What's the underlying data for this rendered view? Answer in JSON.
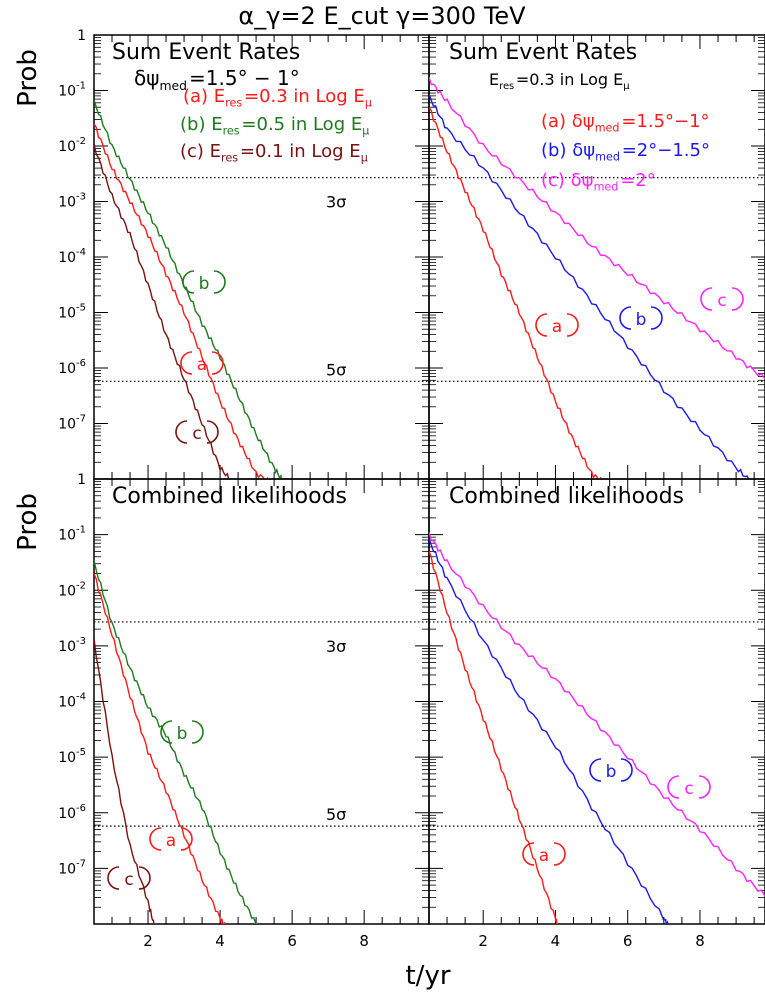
{
  "figure": {
    "title": "α_γ=2 E_cut γ=300 TeV",
    "ylabel": "Prob",
    "xlabel": "t/yr",
    "x_ticks": [
      "2",
      "4",
      "6",
      "8"
    ],
    "y_ticks": [
      "1",
      "10^-1",
      "10^-2",
      "10^-3",
      "10^-4",
      "10^-5",
      "10^-6",
      "10^-7",
      "1"
    ],
    "sigma_labels": [
      "3σ",
      "5σ"
    ]
  },
  "colors": {
    "red": "#ff1a1a",
    "green": "#1e7a1e",
    "darkred": "#7a1010",
    "blue": "#1a1aee",
    "magenta": "#ff22ff"
  },
  "panels": [
    {
      "title": "Sum Event Rates",
      "subtitle": "δψ_med=1.5° − 1°",
      "legend": [
        {
          "text": "(a) E_res=0.3 in Log E_μ",
          "color": "red"
        },
        {
          "text": "(b) E_res=0.5 in Log E_μ",
          "color": "green"
        },
        {
          "text": "(c) E_res=0.1 in Log E_μ",
          "color": "darkred"
        }
      ],
      "curve_labels": [
        {
          "label": "b",
          "color": "green"
        },
        {
          "label": "a",
          "color": "red"
        },
        {
          "label": "c",
          "color": "darkred"
        }
      ]
    },
    {
      "title": "Sum Event Rates",
      "subtitle": "E_res=0.3 in Log E_μ",
      "legend": [
        {
          "text": "(a) δψ_med=1.5°−1°",
          "color": "red"
        },
        {
          "text": "(b) δψ_med=2°−1.5°",
          "color": "blue"
        },
        {
          "text": "(c) δψ_med=2°",
          "color": "magenta"
        }
      ],
      "curve_labels": [
        {
          "label": "a",
          "color": "red"
        },
        {
          "label": "b",
          "color": "blue"
        },
        {
          "label": "c",
          "color": "magenta"
        }
      ]
    },
    {
      "title": "Combined likelihoods",
      "subtitle": "",
      "legend": [],
      "curve_labels": [
        {
          "label": "b",
          "color": "green"
        },
        {
          "label": "a",
          "color": "red"
        },
        {
          "label": "c",
          "color": "darkred"
        }
      ]
    },
    {
      "title": "Combined likelihoods",
      "subtitle": "",
      "legend": [],
      "curve_labels": [
        {
          "label": "a",
          "color": "red"
        },
        {
          "label": "b",
          "color": "blue"
        },
        {
          "label": "c",
          "color": "magenta"
        }
      ]
    }
  ],
  "chart_data": [
    {
      "type": "line",
      "title": "Sum Event Rates",
      "xlabel": "t/yr",
      "ylabel": "Prob",
      "xlim": [
        0.5,
        9.8
      ],
      "ylim_log10": [
        -8,
        0
      ],
      "hlines_log10": [
        {
          "y": -2.57,
          "label": "3σ"
        },
        {
          "y": -6.24,
          "label": "5σ"
        }
      ],
      "series": [
        {
          "name": "(a) E_res=0.3 in Log E_μ",
          "color": "red",
          "x": [
            0.5,
            1,
            1.5,
            2,
            2.5,
            3,
            3.5,
            4,
            4.5,
            5.0,
            5.5
          ],
          "y_log10": [
            -1.6,
            -2.4,
            -3.0,
            -3.6,
            -4.3,
            -5.0,
            -5.8,
            -6.6,
            -7.3,
            -7.9,
            -8.1
          ]
        },
        {
          "name": "(b) E_res=0.5 in Log E_μ",
          "color": "green",
          "x": [
            0.5,
            1,
            1.5,
            2,
            2.5,
            3,
            3.5,
            4,
            4.5,
            5,
            5.5,
            5.8
          ],
          "y_log10": [
            -1.2,
            -2.0,
            -2.6,
            -3.2,
            -3.8,
            -4.5,
            -5.2,
            -5.8,
            -6.5,
            -7.2,
            -7.8,
            -8.1
          ]
        },
        {
          "name": "(c) E_res=0.1 in Log E_μ",
          "color": "darkred",
          "x": [
            0.5,
            1,
            1.5,
            2,
            2.5,
            3,
            3.5,
            4,
            4.4
          ],
          "y_log10": [
            -2.0,
            -2.9,
            -3.6,
            -4.5,
            -5.4,
            -6.2,
            -7.0,
            -7.8,
            -8.1
          ]
        }
      ]
    },
    {
      "type": "line",
      "title": "Sum Event Rates",
      "xlabel": "t/yr",
      "ylabel": "Prob",
      "xlim": [
        0.5,
        9.8
      ],
      "ylim_log10": [
        -8,
        0
      ],
      "hlines_log10": [
        {
          "y": -2.57,
          "label": ""
        },
        {
          "y": -6.24,
          "label": ""
        }
      ],
      "series": [
        {
          "name": "(a) δψ_med=1.5°−1°",
          "color": "red",
          "x": [
            0.5,
            1,
            1.5,
            2,
            2.5,
            3,
            3.5,
            4,
            4.5,
            5.0,
            5.4
          ],
          "y_log10": [
            -1.3,
            -2.1,
            -2.8,
            -3.5,
            -4.3,
            -5.0,
            -5.8,
            -6.6,
            -7.3,
            -7.9,
            -8.1
          ]
        },
        {
          "name": "(b) δψ_med=2°−1.5°",
          "color": "blue",
          "x": [
            0.5,
            1,
            2,
            3,
            4,
            5,
            6,
            7,
            8,
            9,
            9.5
          ],
          "y_log10": [
            -1.1,
            -1.7,
            -2.4,
            -3.2,
            -4.0,
            -4.8,
            -5.6,
            -6.4,
            -7.1,
            -7.8,
            -8.1
          ]
        },
        {
          "name": "(c) δψ_med=2°",
          "color": "magenta",
          "x": [
            0.5,
            1,
            2,
            3,
            4,
            5,
            6,
            7,
            8,
            9,
            9.8
          ],
          "y_log10": [
            -0.8,
            -1.2,
            -2.0,
            -2.6,
            -3.2,
            -3.8,
            -4.3,
            -4.8,
            -5.3,
            -5.8,
            -6.2
          ]
        }
      ]
    },
    {
      "type": "line",
      "title": "Combined likelihoods",
      "xlabel": "t/yr",
      "ylabel": "Prob",
      "xlim": [
        0.5,
        9.8
      ],
      "ylim_log10": [
        -8,
        0
      ],
      "hlines_log10": [
        {
          "y": -2.57,
          "label": "3σ"
        },
        {
          "y": -6.24,
          "label": "5σ"
        }
      ],
      "series": [
        {
          "name": "(a)",
          "color": "red",
          "x": [
            0.5,
            1,
            1.5,
            2,
            2.5,
            3,
            3.5,
            4,
            4.2
          ],
          "y_log10": [
            -1.7,
            -2.8,
            -3.9,
            -4.9,
            -5.6,
            -6.4,
            -7.2,
            -7.9,
            -8.1
          ]
        },
        {
          "name": "(b)",
          "color": "green",
          "x": [
            0.5,
            1,
            1.5,
            2,
            2.5,
            3,
            3.5,
            4,
            4.5,
            5,
            5.1
          ],
          "y_log10": [
            -1.5,
            -2.6,
            -3.4,
            -4.1,
            -4.6,
            -5.3,
            -5.9,
            -6.7,
            -7.4,
            -8.0,
            -8.1
          ]
        },
        {
          "name": "(c)",
          "color": "darkred",
          "x": [
            0.5,
            1,
            1.5,
            2,
            2.2
          ],
          "y_log10": [
            -2.9,
            -5.0,
            -6.6,
            -7.6,
            -8.1
          ]
        }
      ]
    },
    {
      "type": "line",
      "title": "Combined likelihoods",
      "xlabel": "t/yr",
      "ylabel": "Prob",
      "xlim": [
        0.5,
        9.8
      ],
      "ylim_log10": [
        -8,
        0
      ],
      "hlines_log10": [
        {
          "y": -2.57,
          "label": ""
        },
        {
          "y": -6.24,
          "label": ""
        }
      ],
      "series": [
        {
          "name": "(a)",
          "color": "red",
          "x": [
            0.5,
            1,
            1.5,
            2,
            2.5,
            3,
            3.5,
            4,
            4.1
          ],
          "y_log10": [
            -1.3,
            -2.4,
            -3.4,
            -4.3,
            -5.2,
            -6.1,
            -7.0,
            -7.9,
            -8.1
          ]
        },
        {
          "name": "(b)",
          "color": "blue",
          "x": [
            0.5,
            1,
            2,
            3,
            4,
            5,
            6,
            7,
            7.2
          ],
          "y_log10": [
            -1.1,
            -1.8,
            -2.9,
            -3.9,
            -4.8,
            -5.9,
            -6.9,
            -7.9,
            -8.1
          ]
        },
        {
          "name": "(c)",
          "color": "magenta",
          "x": [
            0.5,
            1,
            2,
            3,
            4,
            5,
            6,
            7,
            8,
            9,
            9.8
          ],
          "y_log10": [
            -1.0,
            -1.5,
            -2.3,
            -3.0,
            -3.6,
            -4.3,
            -5.0,
            -5.7,
            -6.3,
            -7.0,
            -7.5
          ]
        }
      ]
    }
  ]
}
